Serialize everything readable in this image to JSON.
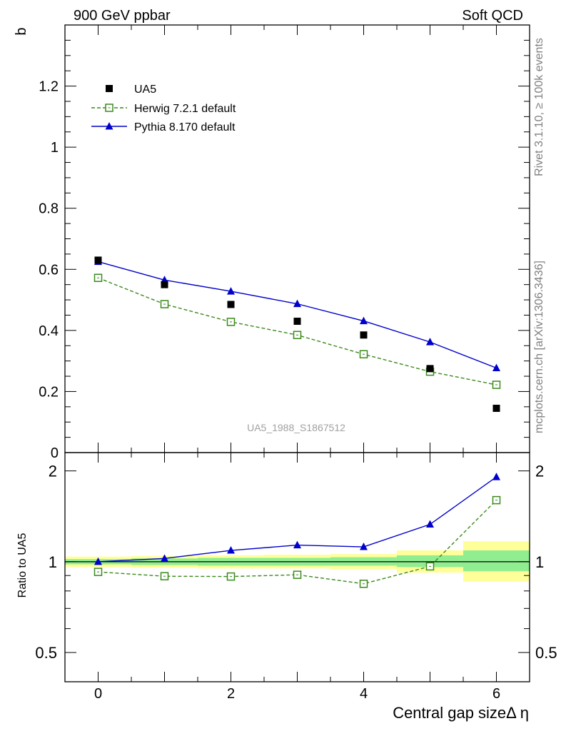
{
  "header": {
    "left": "900 GeV ppbar",
    "right": "Soft QCD"
  },
  "side_texts": {
    "rivet": "Rivet 3.1.10, ≥ 100k events",
    "mcplots": "mcplots.cern.ch [arXiv:1306.3436]"
  },
  "watermark": "UA5_1988_S1867512",
  "colors": {
    "data": "#000000",
    "herwig": "#3a8a1a",
    "pythia": "#0000cc",
    "band_inner": "#90ee90",
    "band_outer": "#ffff99"
  },
  "chart_data": [
    {
      "type": "line",
      "panel": "main",
      "ylabel": "b",
      "xlim": [
        -0.5,
        6.5
      ],
      "ylim": [
        0,
        1.4
      ],
      "y_ticks": [
        0,
        0.2,
        0.4,
        0.6,
        0.8,
        1,
        1.2
      ],
      "y_tick_labels": [
        "0",
        "0.2",
        "0.4",
        "0.6",
        "0.8",
        "1",
        "1.2"
      ],
      "legend_position": "top-left",
      "series": [
        {
          "name": "UA5",
          "style": "markers",
          "x": [
            0,
            1,
            2,
            3,
            4,
            5,
            6
          ],
          "y": [
            0.63,
            0.55,
            0.485,
            0.43,
            0.385,
            0.275,
            0.145
          ]
        },
        {
          "name": "Herwig 7.2.1 default",
          "style": "dashed-open-square",
          "x": [
            0,
            1,
            2,
            3,
            4,
            5,
            6
          ],
          "y": [
            0.572,
            0.486,
            0.428,
            0.385,
            0.322,
            0.265,
            0.222
          ]
        },
        {
          "name": "Pythia 8.170 default",
          "style": "solid-triangle",
          "x": [
            0,
            1,
            2,
            3,
            4,
            5,
            6
          ],
          "y": [
            0.625,
            0.565,
            0.528,
            0.487,
            0.431,
            0.362,
            0.277
          ]
        }
      ]
    },
    {
      "type": "line",
      "panel": "ratio",
      "ylabel": "Ratio to UA5",
      "xlabel": "Central gap sizeΔ η",
      "xlim": [
        -0.5,
        6.5
      ],
      "ylim": [
        0.4,
        2.3
      ],
      "log_y": true,
      "x_ticks": [
        0,
        2,
        4,
        6
      ],
      "x_tick_labels": [
        "0",
        "2",
        "4",
        "6"
      ],
      "y_ticks": [
        0.5,
        1,
        2
      ],
      "y_tick_labels": [
        "0.5",
        "1",
        "2"
      ],
      "band_bins": [
        {
          "x": [
            -0.5,
            0.5
          ],
          "inner": [
            0.98,
            1.02
          ],
          "outer": [
            0.96,
            1.04
          ]
        },
        {
          "x": [
            0.5,
            1.5
          ],
          "inner": [
            0.975,
            1.025
          ],
          "outer": [
            0.955,
            1.045
          ]
        },
        {
          "x": [
            1.5,
            2.5
          ],
          "inner": [
            0.97,
            1.03
          ],
          "outer": [
            0.95,
            1.05
          ]
        },
        {
          "x": [
            2.5,
            3.5
          ],
          "inner": [
            0.97,
            1.03
          ],
          "outer": [
            0.95,
            1.055
          ]
        },
        {
          "x": [
            3.5,
            4.5
          ],
          "inner": [
            0.97,
            1.035
          ],
          "outer": [
            0.945,
            1.06
          ]
        },
        {
          "x": [
            4.5,
            5.5
          ],
          "inner": [
            0.96,
            1.05
          ],
          "outer": [
            0.92,
            1.09
          ]
        },
        {
          "x": [
            5.5,
            6.5
          ],
          "inner": [
            0.93,
            1.09
          ],
          "outer": [
            0.86,
            1.17
          ]
        }
      ],
      "series": [
        {
          "name": "Herwig 7.2.1 default",
          "x": [
            0,
            1,
            2,
            3,
            4,
            5,
            6
          ],
          "y": [
            0.925,
            0.895,
            0.893,
            0.905,
            0.845,
            0.965,
            1.6
          ]
        },
        {
          "name": "Pythia 8.170 default",
          "x": [
            0,
            1,
            2,
            3,
            4,
            5,
            6
          ],
          "y": [
            1.0,
            1.025,
            1.09,
            1.135,
            1.12,
            1.33,
            1.91
          ]
        }
      ]
    }
  ]
}
